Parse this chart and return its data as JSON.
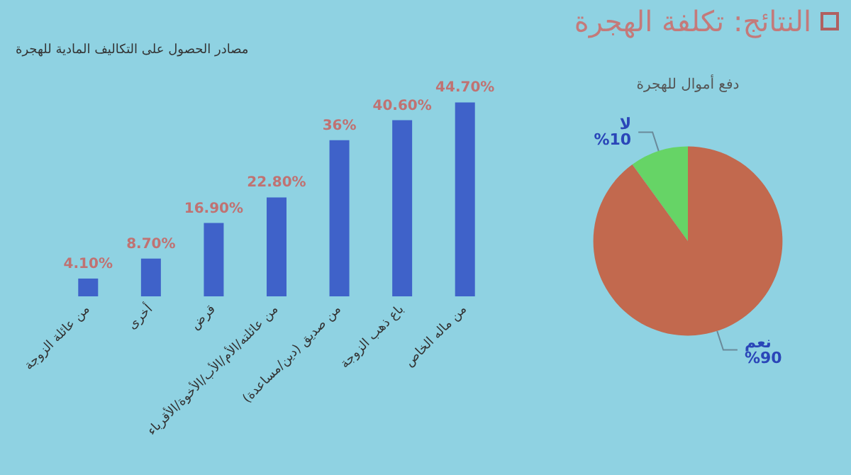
{
  "chart_data": [
    {
      "type": "other",
      "title": "النتائج: تكلفة الهجرة"
    },
    {
      "type": "bar",
      "title": "مصادر الحصول على التكاليف المادية للهجرة",
      "categories": [
        "من عائلة الزوجة",
        "أخرى",
        "قرض",
        "من عائلته/الأم/الأب/الأخوة/الأقرباء",
        "من صديق (دين/مساعدة)",
        "باع ذهب الزوجة",
        "من ماله الخاص"
      ],
      "values": [
        4.1,
        8.7,
        16.9,
        22.8,
        36,
        40.6,
        44.7
      ],
      "value_labels": [
        "4.10%",
        "8.70%",
        "16.90%",
        "22.80%",
        "36%",
        "40.60%",
        "44.70%"
      ],
      "color": "#3f62c9",
      "grid": false,
      "legend": false
    },
    {
      "type": "pie",
      "title": "دفع أموال للهجرة",
      "categories": [
        "لا",
        "نعم"
      ],
      "values": [
        10,
        90
      ],
      "value_labels": [
        "%10",
        "%90"
      ],
      "colors": [
        "#66d466",
        "#c2694e"
      ],
      "legend": false
    }
  ]
}
